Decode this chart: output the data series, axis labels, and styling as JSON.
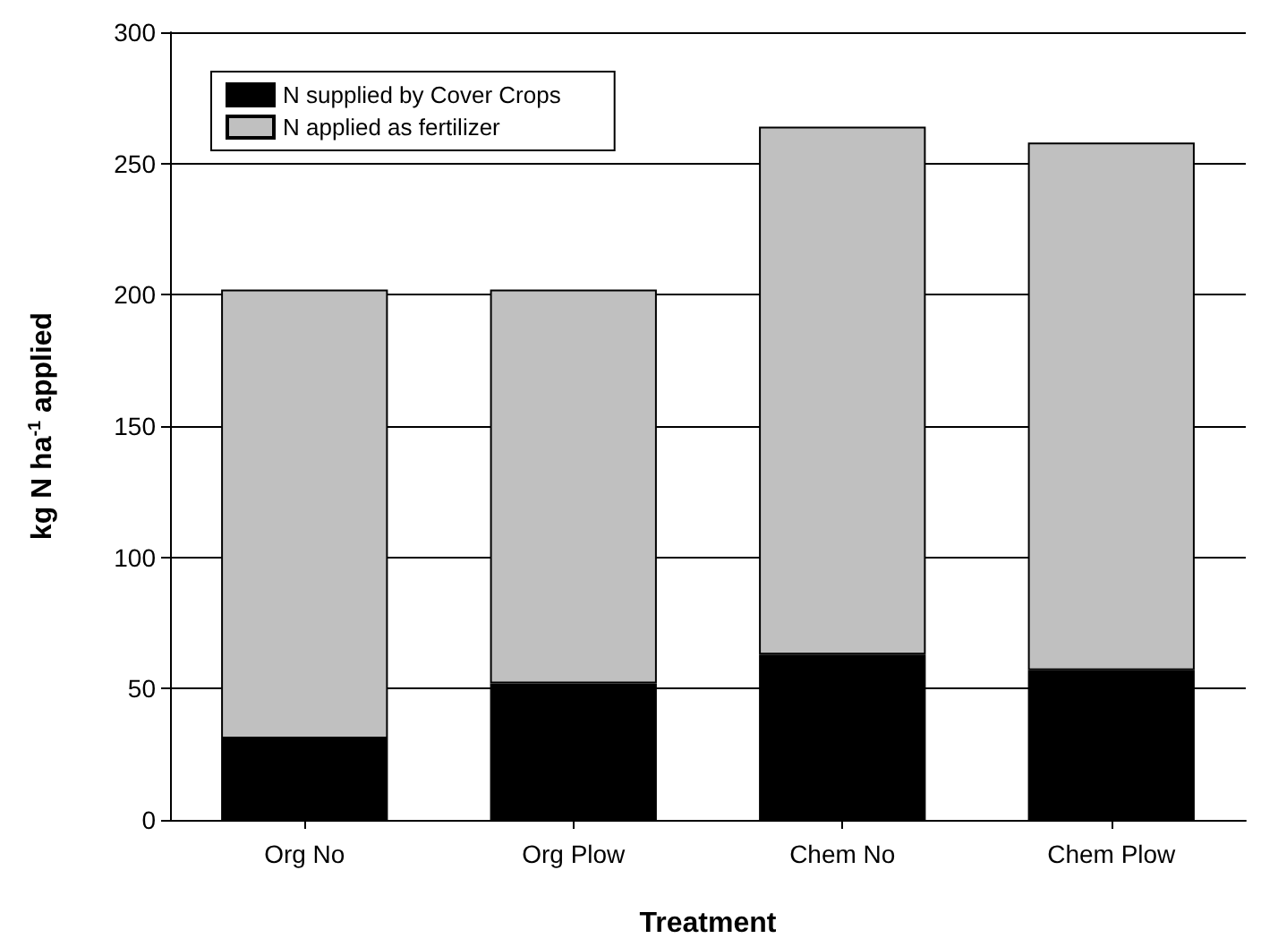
{
  "chart_data": {
    "type": "bar",
    "xlabel": "Treatment",
    "ylabel": "kg N ha$^{-1}$ applied",
    "categories": [
      "Org No",
      "Org Plow",
      "Chem No",
      "Chem Plow"
    ],
    "stacked": true,
    "series": [
      {
        "name": "N supplied by Cover Crops",
        "color": "#000000",
        "values": [
          31,
          52,
          63,
          57
        ]
      },
      {
        "name": "N applied as fertilizer",
        "color": "#c0c0c0",
        "values": [
          171,
          150,
          201,
          201
        ]
      }
    ],
    "ylim": [
      0,
      300
    ],
    "yticks": [
      0,
      50,
      100,
      150,
      200,
      250,
      300
    ],
    "grid": "y",
    "legend": "top left"
  }
}
